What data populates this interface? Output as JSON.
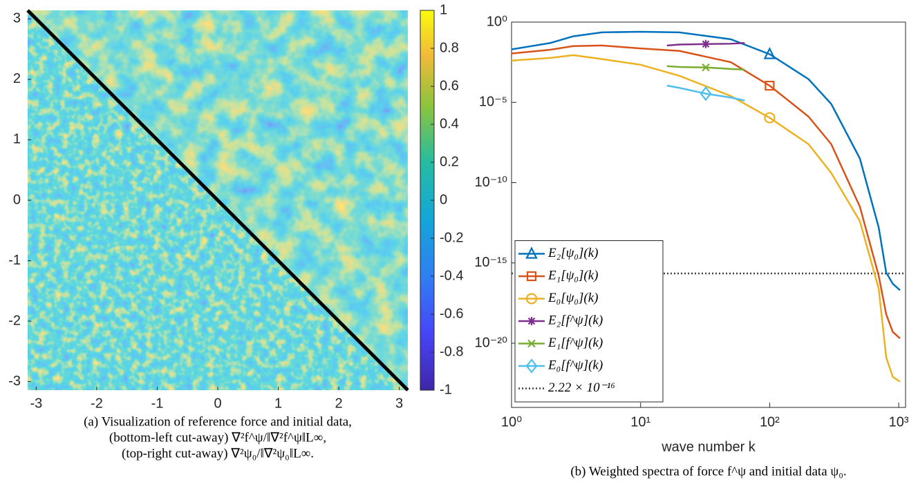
{
  "chart_data": [
    {
      "type": "heatmap",
      "xlim": [
        -3.1416,
        3.1416
      ],
      "xticks": [
        -3,
        -2,
        -1,
        0,
        1,
        2,
        3
      ],
      "ylim": [
        -3.1416,
        3.1416
      ],
      "yticks": [
        -3,
        -2,
        -1,
        0,
        1,
        2,
        3
      ],
      "clim": [
        -1,
        1
      ],
      "cticks": [
        -1,
        -0.8,
        -0.6,
        -0.4,
        -0.2,
        0,
        0.2,
        0.4,
        0.6,
        0.8,
        1
      ],
      "caption": [
        "(a) Visualization of reference force and initial data,",
        "(bottom-left cut-away) ∇²f^ψ/‖∇²f^ψ‖L∞,",
        "(top-right cut-away) ∇²ψ₀/‖∇²ψ₀‖L∞."
      ]
    },
    {
      "type": "line",
      "xscale": "log",
      "yscale": "log",
      "xlabel": "wave number k",
      "caption": "(b) Weighted spectra of force f^ψ and initial data ψ₀.",
      "xlim": [
        1,
        1130
      ],
      "xticks": [
        {
          "value": 1,
          "label": "10⁰"
        },
        {
          "value": 10,
          "label": "10¹"
        },
        {
          "value": 100,
          "label": "10²"
        },
        {
          "value": 1000,
          "label": "10³"
        }
      ],
      "ylim": [
        1e-24,
        1
      ],
      "yticks": [
        {
          "value": 1e-20,
          "label": "10⁻²⁰"
        },
        {
          "value": 1e-15,
          "label": "10⁻¹⁵"
        },
        {
          "value": 1e-10,
          "label": "10⁻¹⁰"
        },
        {
          "value": 1e-05,
          "label": "10⁻⁵"
        },
        {
          "value": 1,
          "label": "10⁰"
        }
      ],
      "series": [
        {
          "name": "E₂[ψ₀](k)",
          "color": "#0072bd",
          "marker": "triangle",
          "x": [
            1,
            2,
            3,
            5,
            10,
            20,
            50,
            100,
            200,
            300,
            500,
            700,
            800,
            900,
            1024
          ],
          "values": [
            0.02,
            0.05,
            0.13,
            0.23,
            0.25,
            0.23,
            0.085,
            0.01,
            0.00028,
            8e-06,
            3.2e-09,
            1.6e-13,
            2.5e-16,
            5e-17,
            2e-17
          ]
        },
        {
          "name": "E₁[ψ₀](k)",
          "color": "#d95319",
          "marker": "square",
          "x": [
            1,
            2,
            3,
            5,
            10,
            20,
            50,
            100,
            200,
            300,
            500,
            700,
            800,
            900,
            1024
          ],
          "values": [
            0.011,
            0.019,
            0.032,
            0.035,
            0.023,
            0.016,
            0.0032,
            0.00011,
            1.3e-06,
            2.5e-08,
            3.2e-12,
            1.6e-16,
            6.3e-19,
            5e-20,
            2e-20
          ]
        },
        {
          "name": "E₀[ψ₀](k)",
          "color": "#edb120",
          "marker": "circle",
          "x": [
            1,
            2,
            3,
            5,
            10,
            20,
            50,
            100,
            200,
            300,
            500,
            700,
            800,
            900,
            1024
          ],
          "values": [
            0.004,
            0.0059,
            0.0087,
            0.005,
            0.0022,
            0.00045,
            2.5e-05,
            1.1e-06,
            2.5e-08,
            4e-10,
            4e-13,
            2.5e-17,
            1.3e-21,
            8e-23,
            4e-23
          ]
        },
        {
          "name": "E₂[f^ψ](k)",
          "color": "#7e2f8e",
          "marker": "star",
          "x": [
            16,
            20,
            32,
            50,
            64
          ],
          "values": [
            0.035,
            0.04,
            0.043,
            0.045,
            0.05
          ]
        },
        {
          "name": "E₁[f^ψ](k)",
          "color": "#77ac30",
          "marker": "x",
          "x": [
            16,
            20,
            32,
            50,
            64
          ],
          "values": [
            0.0018,
            0.0016,
            0.0015,
            0.0012,
            0.0011
          ]
        },
        {
          "name": "E₀[f^ψ](k)",
          "color": "#4dbeee",
          "marker": "diamond",
          "x": [
            16,
            20,
            32,
            50,
            64
          ],
          "values": [
            0.00011,
            8e-05,
            3.5e-05,
            2e-05,
            1.3e-05
          ]
        }
      ],
      "hlines": [
        {
          "name": "2.22 × 10⁻¹⁶",
          "value": 2.22e-16,
          "color": "#404040"
        }
      ],
      "legend": "lower-left"
    }
  ]
}
